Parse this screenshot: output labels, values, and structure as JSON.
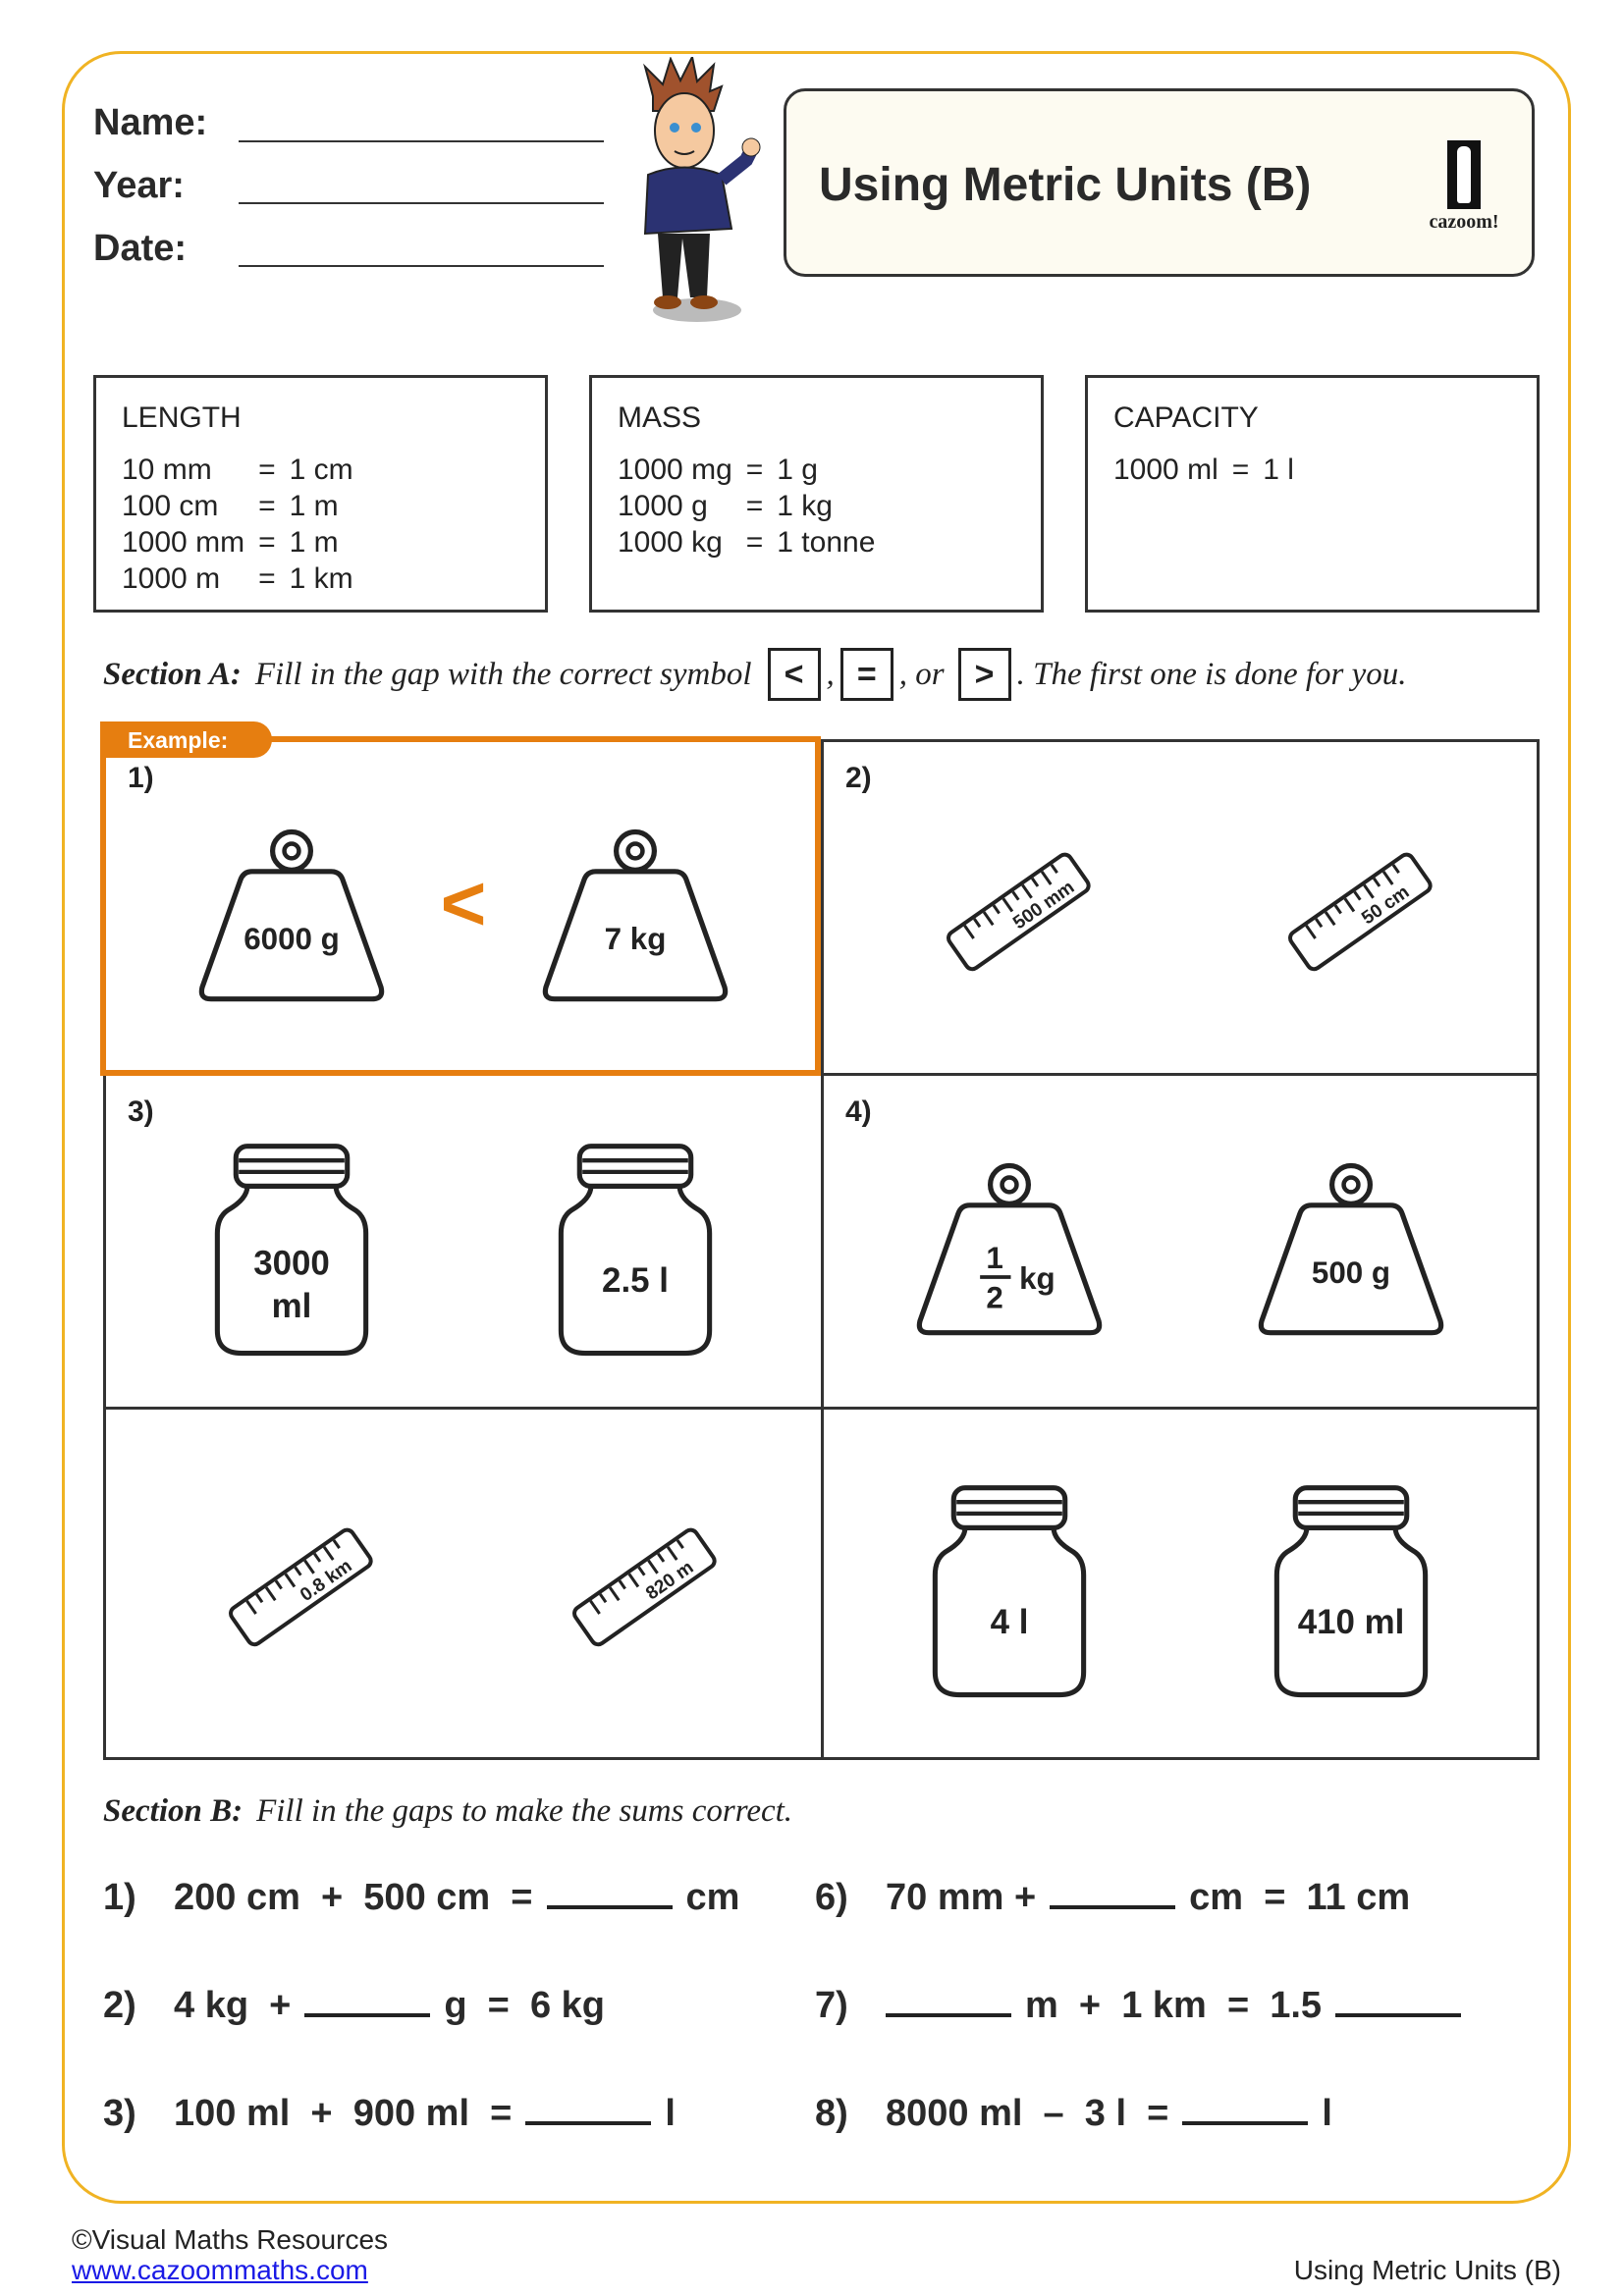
{
  "header": {
    "name_label": "Name:",
    "year_label": "Year:",
    "date_label": "Date:",
    "title": "Using Metric Units (B)",
    "logo_text": "cazoom!"
  },
  "reference": [
    {
      "heading": "LENGTH",
      "rows": [
        [
          "10 mm",
          "=",
          "1 cm"
        ],
        [
          "100 cm",
          "=",
          "1 m"
        ],
        [
          "1000 mm",
          "=",
          "1 m"
        ],
        [
          "1000 m",
          "=",
          "1 km"
        ]
      ]
    },
    {
      "heading": "MASS",
      "rows": [
        [
          "1000 mg",
          "=",
          "1 g"
        ],
        [
          "1000 g",
          "=",
          "1 kg"
        ],
        [
          "1000 kg",
          "=",
          "1 tonne"
        ]
      ]
    },
    {
      "heading": "CAPACITY",
      "rows": [
        [
          "1000 ml",
          "=",
          "1 l"
        ]
      ]
    }
  ],
  "section_a": {
    "label": "Section A:",
    "instruction": "Fill in the gap with the correct symbol",
    "symbols": [
      "<",
      "=",
      ">"
    ],
    "sep1": ",",
    "sep2": ", or",
    "tail": ". The first one is done for you.",
    "example_label": "Example:",
    "accent": "#e67e10",
    "cells": [
      {
        "number": "1)",
        "left": {
          "type": "weight",
          "text": "6000 g"
        },
        "symbol": "<",
        "right": {
          "type": "weight",
          "text": "7 kg"
        }
      },
      {
        "number": "2)",
        "left": {
          "type": "ruler",
          "text": "500 mm"
        },
        "symbol": "",
        "right": {
          "type": "ruler",
          "text": "50 cm"
        }
      },
      {
        "number": "3)",
        "left": {
          "type": "jar",
          "text": "3000",
          "text2": "ml"
        },
        "symbol": "",
        "right": {
          "type": "jar",
          "text": "2.5 l"
        }
      },
      {
        "number": "4)",
        "left": {
          "type": "weight-fraction",
          "num": "1",
          "den": "2",
          "unit": "kg"
        },
        "symbol": "",
        "right": {
          "type": "weight",
          "text": "500 g"
        }
      },
      {
        "number": "",
        "left": {
          "type": "ruler",
          "text": "0.8 km"
        },
        "symbol": "",
        "right": {
          "type": "ruler",
          "text": "820 m"
        }
      },
      {
        "number": "",
        "left": {
          "type": "jar",
          "text": "4 l"
        },
        "symbol": "",
        "right": {
          "type": "jar",
          "text": "410 ml"
        }
      }
    ]
  },
  "section_b": {
    "label": "Section B:",
    "instruction": "Fill in the gaps to make the sums correct.",
    "items": [
      {
        "number": "1)",
        "parts": [
          "200 cm  +  500 cm  =",
          "_",
          "cm"
        ]
      },
      {
        "number": "2)",
        "parts": [
          "4 kg  +",
          "_",
          "g  =  6 kg"
        ]
      },
      {
        "number": "3)",
        "parts": [
          "100 ml  +  900 ml  =",
          "_",
          "l"
        ]
      },
      {
        "number": "6)",
        "parts": [
          "70 mm +",
          "_",
          "cm  =  11 cm"
        ]
      },
      {
        "number": "7)",
        "parts": [
          "_",
          "m  +  1 km  =  1.5",
          "_"
        ]
      },
      {
        "number": "8)",
        "parts": [
          "8000 ml  –  3 l  =",
          "_",
          "l"
        ]
      }
    ]
  },
  "footer": {
    "copyright": "©Visual Maths Resources",
    "link": "www.cazoommaths.com",
    "page_title": "Using Metric Units (B)"
  },
  "border_color": "#f0b323"
}
